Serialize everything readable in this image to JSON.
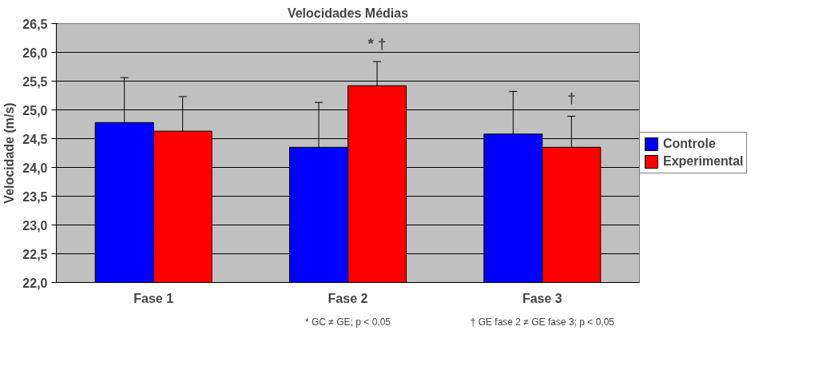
{
  "chart_data": {
    "type": "bar",
    "title": "Velocidades Médias",
    "ylabel": "Velocidade (m/s)",
    "categories": [
      "Fase 1",
      "Fase 2",
      "Fase 3"
    ],
    "series": [
      {
        "name": "Controle",
        "color": "#0000ff",
        "values": [
          24.78,
          24.35,
          24.58
        ],
        "errors": [
          0.78,
          0.78,
          0.74
        ]
      },
      {
        "name": "Experimental",
        "color": "#ff0000",
        "values": [
          24.63,
          25.42,
          24.35
        ],
        "errors": [
          0.6,
          0.42,
          0.54
        ]
      }
    ],
    "ylim": [
      22.0,
      26.5
    ],
    "yticks": [
      {
        "value": 22.0,
        "label": "22,0"
      },
      {
        "value": 22.5,
        "label": "22,5"
      },
      {
        "value": 23.0,
        "label": "23,0"
      },
      {
        "value": 23.5,
        "label": "23,5"
      },
      {
        "value": 24.0,
        "label": "24,0"
      },
      {
        "value": 24.5,
        "label": "24,5"
      },
      {
        "value": 25.0,
        "label": "25,0"
      },
      {
        "value": 25.5,
        "label": "25,5"
      },
      {
        "value": 26.0,
        "label": "26,0"
      },
      {
        "value": 26.5,
        "label": "26,5"
      }
    ],
    "grid": "y",
    "legend": "right",
    "annotations": [
      "* †",
      "†",
      "* GC ≠ GE; p < 0,05",
      "† GE fase 2 ≠ GE fase 3; p < 0,05"
    ]
  }
}
